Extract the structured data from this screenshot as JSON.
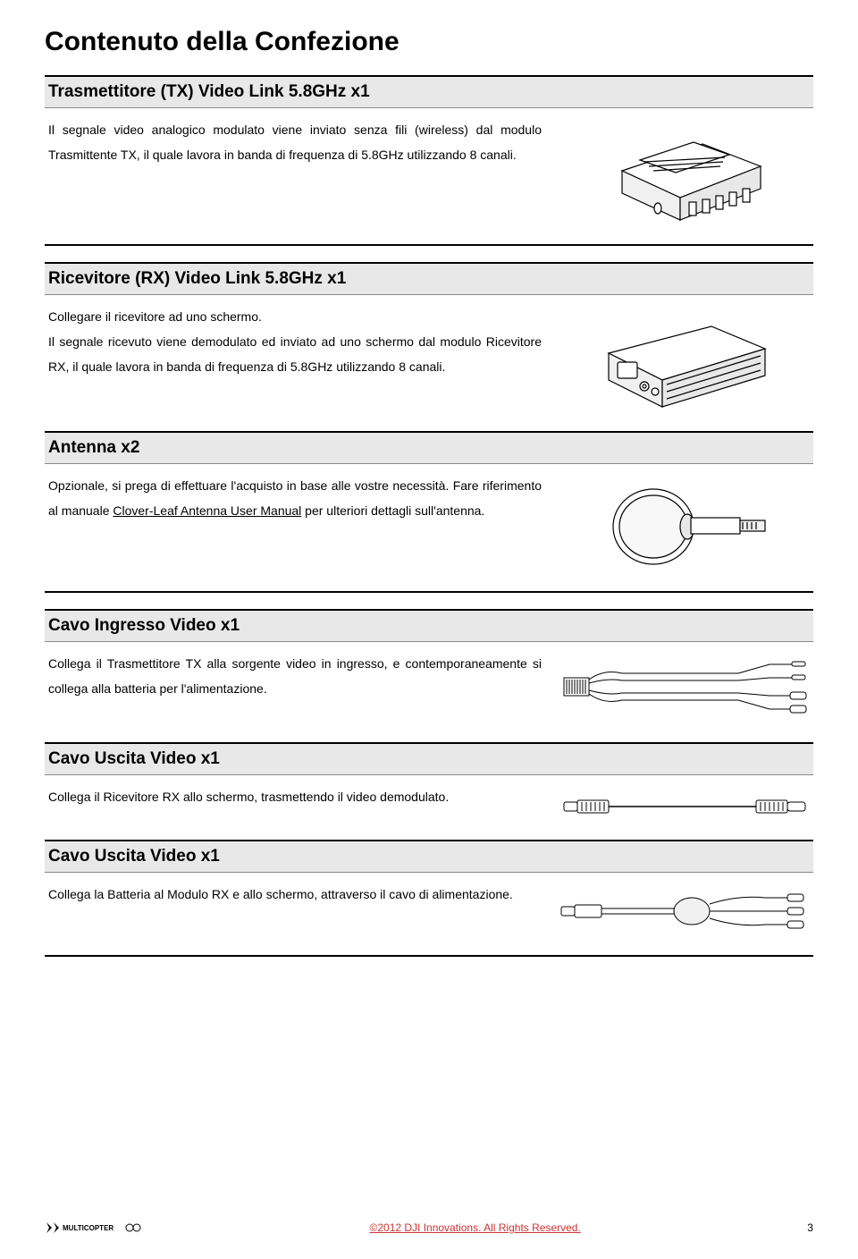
{
  "page": {
    "title": "Contenuto della Confezione",
    "background_color": "#ffffff",
    "text_color": "#000000",
    "heading_bg": "#e8e8e8",
    "rule_color": "#000000"
  },
  "sections": [
    {
      "heading": "Trasmettitore (TX) Video Link 5.8GHz x1",
      "text": "Il segnale video analogico modulato viene inviato senza fili (wireless) dal modulo Trasmittente TX, il quale lavora in banda di frequenza di 5.8GHz utilizzando 8 canali."
    },
    {
      "heading": "Ricevitore (RX) Video Link 5.8GHz x1",
      "text": "Collegare il ricevitore ad uno schermo.\nIl segnale ricevuto viene demodulato ed inviato ad uno schermo dal modulo Ricevitore RX, il quale lavora in banda di frequenza di 5.8GHz utilizzando 8 canali."
    },
    {
      "heading": "Antenna x2",
      "text_before": "Opzionale, si prega di effettuare l'acquisto in base alle vostre necessità. Fare riferimento al manuale ",
      "link1": "Clover-Leaf Antenna User Manual",
      "text_after": " per ulteriori dettagli sull'antenna."
    },
    {
      "heading": "Cavo Ingresso Video x1",
      "text": "Collega il Trasmettitore TX alla sorgente video in ingresso, e contemporaneamente si collega alla batteria per l'alimentazione."
    },
    {
      "heading": "Cavo Uscita Video x1",
      "text": "Collega il Ricevitore RX allo schermo, trasmettendo il video demodulato."
    },
    {
      "heading": "Cavo Uscita Video x1",
      "text": "Collega la Batteria al Modulo RX e allo schermo, attraverso il cavo di alimentazione."
    }
  ],
  "footer": {
    "copyright": "©2012 DJI Innovations. All Rights Reserved.",
    "page_number": "3",
    "link_color": "#cc3333",
    "logo_text": "MULTICOPTER"
  },
  "diagram_colors": {
    "stroke": "#000000",
    "fill": "#ffffff",
    "light": "#f5f5f5"
  }
}
